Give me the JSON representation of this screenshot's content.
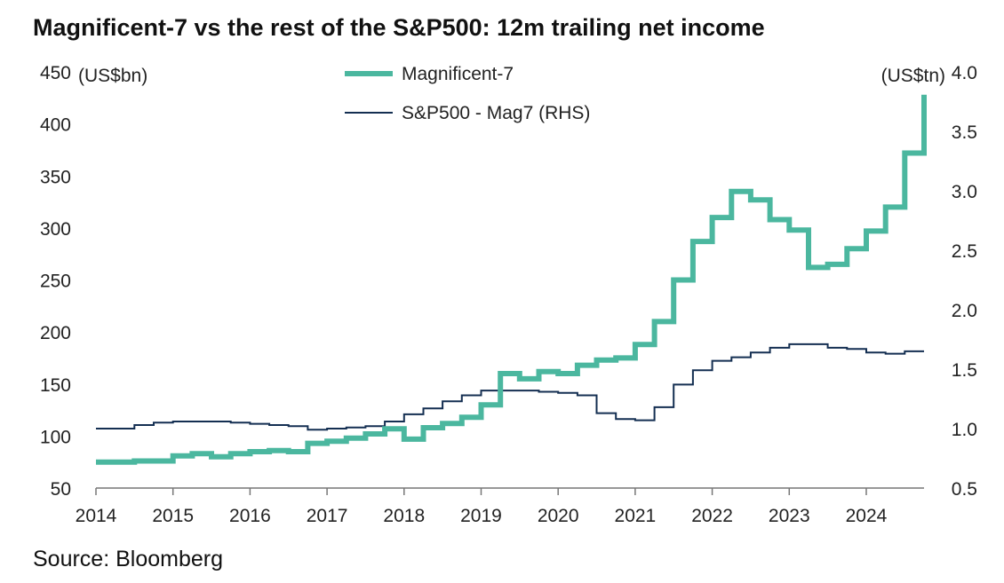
{
  "title": "Magnificent-7 vs the rest of the S&P500: 12m trailing net income",
  "source": "Source: Bloomberg",
  "colors": {
    "mag7": "#4bb79f",
    "rest": "#142f52",
    "axis": "#777777"
  },
  "chart_data": {
    "type": "line",
    "title": "Magnificent-7 vs the rest of the S&P500: 12m trailing net income",
    "left_axis": {
      "unit": "(US$bn)",
      "min": 50,
      "max": 450,
      "ticks": [
        50,
        100,
        150,
        200,
        250,
        300,
        350,
        400,
        450
      ]
    },
    "right_axis": {
      "unit": "(US$tn)",
      "min": 0.5,
      "max": 4.0,
      "ticks": [
        "0.5",
        "1.0",
        "1.5",
        "2.0",
        "2.5",
        "3.0",
        "3.5",
        "4.0"
      ]
    },
    "x_axis": {
      "min": 2014,
      "max": 2024.75,
      "ticks": [
        "2014",
        "2015",
        "2016",
        "2017",
        "2018",
        "2019",
        "2020",
        "2021",
        "2022",
        "2023",
        "2024"
      ]
    },
    "legend_position": "top-center",
    "series": [
      {
        "name": "Magnificent-7",
        "axis": "left",
        "points": [
          [
            2014.0,
            75
          ],
          [
            2014.25,
            75
          ],
          [
            2014.5,
            76
          ],
          [
            2014.75,
            76
          ],
          [
            2015.0,
            81
          ],
          [
            2015.25,
            83
          ],
          [
            2015.5,
            80
          ],
          [
            2015.75,
            83
          ],
          [
            2016.0,
            85
          ],
          [
            2016.25,
            86
          ],
          [
            2016.5,
            85
          ],
          [
            2016.75,
            93
          ],
          [
            2017.0,
            95
          ],
          [
            2017.25,
            98
          ],
          [
            2017.5,
            102
          ],
          [
            2017.75,
            107
          ],
          [
            2018.0,
            97
          ],
          [
            2018.25,
            108
          ],
          [
            2018.5,
            112
          ],
          [
            2018.75,
            118
          ],
          [
            2019.0,
            130
          ],
          [
            2019.25,
            160
          ],
          [
            2019.5,
            155
          ],
          [
            2019.75,
            162
          ],
          [
            2020.0,
            160
          ],
          [
            2020.25,
            168
          ],
          [
            2020.5,
            173
          ],
          [
            2020.75,
            175
          ],
          [
            2021.0,
            188
          ],
          [
            2021.25,
            210
          ],
          [
            2021.5,
            250
          ],
          [
            2021.75,
            287
          ],
          [
            2022.0,
            310
          ],
          [
            2022.25,
            335
          ],
          [
            2022.5,
            327
          ],
          [
            2022.75,
            308
          ],
          [
            2023.0,
            298
          ],
          [
            2023.25,
            262
          ],
          [
            2023.5,
            265
          ],
          [
            2023.75,
            280
          ],
          [
            2024.0,
            297
          ],
          [
            2024.25,
            320
          ],
          [
            2024.5,
            372
          ],
          [
            2024.75,
            428
          ]
        ]
      },
      {
        "name": "S&P500 - Mag7 (RHS)",
        "axis": "right",
        "points": [
          [
            2014.0,
            1.0
          ],
          [
            2014.5,
            1.03
          ],
          [
            2014.75,
            1.05
          ],
          [
            2015.0,
            1.06
          ],
          [
            2015.75,
            1.05
          ],
          [
            2016.0,
            1.04
          ],
          [
            2016.25,
            1.03
          ],
          [
            2016.5,
            1.02
          ],
          [
            2016.75,
            0.99
          ],
          [
            2017.0,
            1.0
          ],
          [
            2017.25,
            1.01
          ],
          [
            2017.5,
            1.02
          ],
          [
            2017.75,
            1.06
          ],
          [
            2018.0,
            1.12
          ],
          [
            2018.25,
            1.17
          ],
          [
            2018.5,
            1.23
          ],
          [
            2018.75,
            1.28
          ],
          [
            2019.0,
            1.32
          ],
          [
            2019.5,
            1.32
          ],
          [
            2019.75,
            1.31
          ],
          [
            2020.0,
            1.3
          ],
          [
            2020.25,
            1.28
          ],
          [
            2020.5,
            1.13
          ],
          [
            2020.75,
            1.08
          ],
          [
            2021.0,
            1.07
          ],
          [
            2021.25,
            1.18
          ],
          [
            2021.5,
            1.37
          ],
          [
            2021.75,
            1.49
          ],
          [
            2022.0,
            1.57
          ],
          [
            2022.25,
            1.6
          ],
          [
            2022.5,
            1.64
          ],
          [
            2022.75,
            1.68
          ],
          [
            2023.0,
            1.71
          ],
          [
            2023.25,
            1.71
          ],
          [
            2023.5,
            1.68
          ],
          [
            2023.75,
            1.67
          ],
          [
            2024.0,
            1.64
          ],
          [
            2024.25,
            1.63
          ],
          [
            2024.5,
            1.65
          ],
          [
            2024.75,
            1.65
          ]
        ]
      }
    ]
  }
}
